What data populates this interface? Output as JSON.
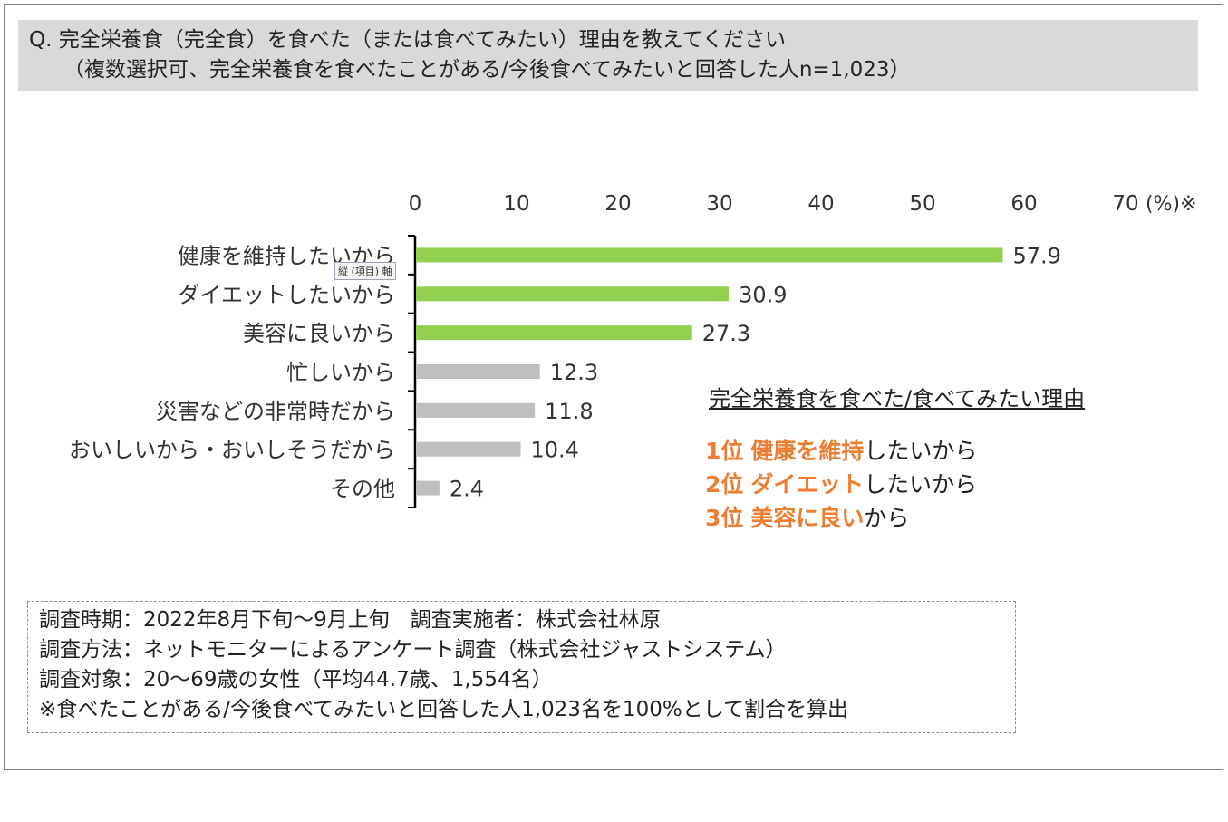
{
  "title": {
    "line1": "Q. 完全栄養食（完全食）を食べた（または食べてみたい）理由を教えてください",
    "line2": "（複数選択可、完全栄養食を食べたことがある/今後食べてみたいと回答した人n=1,023）"
  },
  "axis_tooltip": "縦 (項目) 軸",
  "chart_data": {
    "type": "bar",
    "orientation": "horizontal",
    "categories": [
      "健康を維持したいから",
      "ダイエットしたいから",
      "美容に良いから",
      "忙しいから",
      "災害などの非常時だから",
      "おいしいから・おいしそうだから",
      "その他"
    ],
    "values": [
      57.9,
      30.9,
      27.3,
      12.3,
      11.8,
      10.4,
      2.4
    ],
    "value_labels": [
      "57.9",
      "30.9",
      "27.3",
      "12.3",
      "11.8",
      "10.4",
      "2.4"
    ],
    "highlight_count": 3,
    "colors": {
      "highlight": "#92d050",
      "other": "#bfbfbf"
    },
    "xlim": [
      0,
      70
    ],
    "ticks": [
      0,
      10,
      20,
      30,
      40,
      50,
      60,
      70
    ],
    "tick_labels": [
      "0",
      "10",
      "20",
      "30",
      "40",
      "50",
      "60",
      "70"
    ],
    "unit_label": "(%)※",
    "axis_position": "top",
    "grid": false,
    "legend": false
  },
  "ranking": {
    "heading": "完全栄養食を食べた/食べてみたい理由",
    "items": [
      {
        "rank": "1位",
        "highlight": "健康を維持",
        "rest": "したいから"
      },
      {
        "rank": "2位",
        "highlight": "ダイエット",
        "rest": "したいから"
      },
      {
        "rank": "3位",
        "highlight": "美容に良い",
        "rest": "から"
      }
    ],
    "accent_color": "#ed7d31"
  },
  "notes": [
    "調査時期：2022年8月下旬～9月上旬　調査実施者：株式会社林原",
    "調査方法：ネットモニターによるアンケート調査（株式会社ジャストシステム）",
    "調査対象：20～69歳の女性（平均44.7歳、1,554名）",
    "※食べたことがある/今後食べてみたいと回答した人1,023名を100%として割合を算出"
  ]
}
